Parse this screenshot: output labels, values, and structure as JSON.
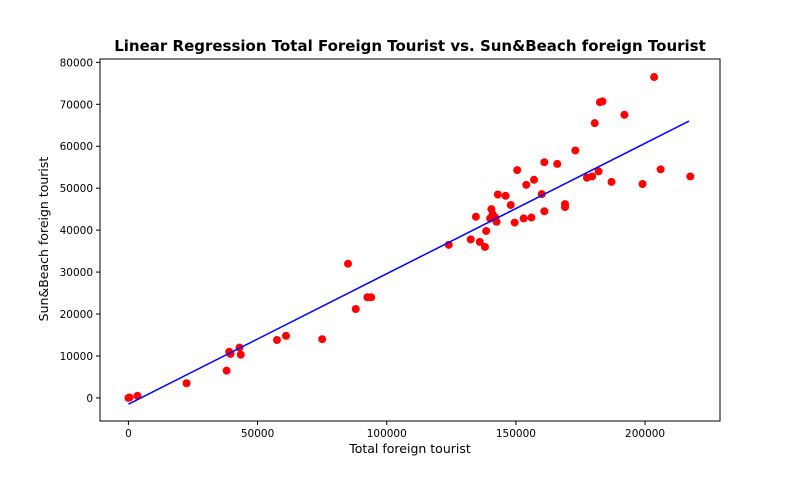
{
  "chart_data": {
    "type": "scatter",
    "title": "Linear Regression Total Foreign Tourist vs. Sun&Beach foreign Tourist",
    "xlabel": "Total foreign tourist",
    "ylabel": "Sun&Beach foreign tourist",
    "xlim": [
      -11000,
      229000
    ],
    "ylim": [
      -5500,
      80800
    ],
    "x_ticks": [
      0,
      50000,
      100000,
      150000,
      200000
    ],
    "y_ticks": [
      0,
      10000,
      20000,
      30000,
      40000,
      50000,
      60000,
      70000,
      80000
    ],
    "grid": false,
    "colors": {
      "points": "#ff0000",
      "regression_line": "#0000ff"
    },
    "regression_line": {
      "x": [
        0,
        217000
      ],
      "y": [
        -1500,
        66000
      ]
    },
    "points": [
      [
        0,
        0
      ],
      [
        400,
        100
      ],
      [
        3500,
        500
      ],
      [
        22500,
        3500
      ],
      [
        38000,
        6500
      ],
      [
        39000,
        11000
      ],
      [
        39500,
        10500
      ],
      [
        43000,
        12000
      ],
      [
        43500,
        10300
      ],
      [
        57500,
        13800
      ],
      [
        61000,
        14800
      ],
      [
        75000,
        14000
      ],
      [
        85000,
        32000
      ],
      [
        88000,
        21200
      ],
      [
        92500,
        24000
      ],
      [
        94000,
        24000
      ],
      [
        124000,
        36500
      ],
      [
        132500,
        37800
      ],
      [
        134500,
        43200
      ],
      [
        136000,
        37200
      ],
      [
        138000,
        36000
      ],
      [
        138500,
        39800
      ],
      [
        140000,
        42800
      ],
      [
        140500,
        45000
      ],
      [
        141000,
        43800
      ],
      [
        142000,
        43000
      ],
      [
        142500,
        42000
      ],
      [
        143000,
        48500
      ],
      [
        146000,
        48200
      ],
      [
        148000,
        46000
      ],
      [
        149500,
        41800
      ],
      [
        150500,
        54300
      ],
      [
        153000,
        42800
      ],
      [
        154000,
        50800
      ],
      [
        156000,
        43000
      ],
      [
        157000,
        52000
      ],
      [
        160000,
        48600
      ],
      [
        161000,
        44500
      ],
      [
        161000,
        56200
      ],
      [
        166000,
        55800
      ],
      [
        169000,
        46200
      ],
      [
        169000,
        45500
      ],
      [
        173000,
        59000
      ],
      [
        177500,
        52500
      ],
      [
        179500,
        52800
      ],
      [
        180500,
        65500
      ],
      [
        182000,
        54000
      ],
      [
        182500,
        70500
      ],
      [
        183500,
        70700
      ],
      [
        187000,
        51500
      ],
      [
        192000,
        67500
      ],
      [
        199000,
        51000
      ],
      [
        203500,
        76500
      ],
      [
        206000,
        54500
      ],
      [
        217500,
        52800
      ]
    ]
  }
}
